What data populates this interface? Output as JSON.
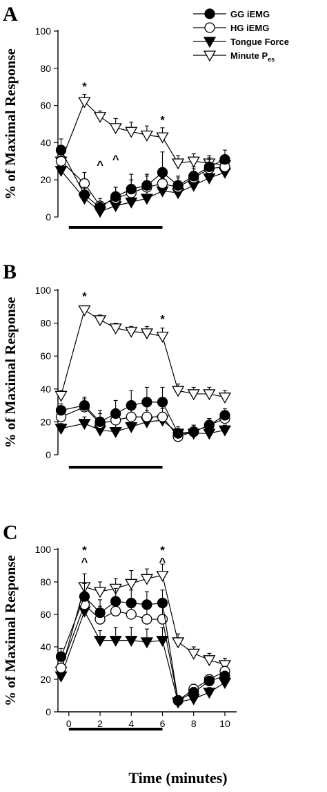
{
  "chart_data": {
    "type": "line",
    "xlabel": "Time (minutes)",
    "ylabel": "% of Maximal Response",
    "ylim": [
      0,
      100
    ],
    "yticks": [
      0,
      20,
      40,
      60,
      80,
      100
    ],
    "xticks": [
      0,
      2,
      4,
      6,
      8,
      10
    ],
    "legend": {
      "position": "top-right",
      "entries": [
        {
          "key": "gg",
          "label": "GG iEMG",
          "marker": "filled-circle"
        },
        {
          "key": "hg",
          "label": "HG iEMG",
          "marker": "open-circle"
        },
        {
          "key": "tf",
          "label": "Tongue Force",
          "marker": "filled-triangle-down"
        },
        {
          "key": "mp",
          "label": "Minute P",
          "sub": "es",
          "marker": "open-triangle-down"
        }
      ]
    },
    "panels": [
      {
        "label": "A",
        "x": [
          -0.5,
          1,
          2,
          3,
          4,
          5,
          6,
          7,
          8,
          9,
          10
        ],
        "bar": [
          0,
          6
        ],
        "series": [
          {
            "key": "gg",
            "values": [
              36,
              12,
              5,
              11,
              15,
              17,
              24,
              17,
              22,
              27,
              31
            ],
            "err": [
              6,
              4,
              3,
              5,
              8,
              6,
              11,
              5,
              5,
              5,
              5
            ]
          },
          {
            "key": "hg",
            "values": [
              30,
              18,
              6,
              10,
              13,
              16,
              18,
              16,
              21,
              26,
              27
            ],
            "err": [
              5,
              6,
              4,
              6,
              7,
              6,
              8,
              5,
              5,
              5,
              5
            ]
          },
          {
            "key": "tf",
            "values": [
              25,
              10,
              3,
              6,
              8,
              10,
              14,
              13,
              17,
              21,
              24
            ],
            "err": [
              5,
              4,
              3,
              4,
              6,
              6,
              7,
              4,
              4,
              4,
              4
            ]
          },
          {
            "key": "mp",
            "values": [
              30,
              62,
              54,
              48,
              46,
              44,
              43,
              29,
              30,
              29,
              28
            ],
            "err": [
              4,
              4,
              3,
              5,
              5,
              5,
              5,
              4,
              4,
              4,
              4
            ]
          }
        ],
        "annotations": [
          {
            "x": 1,
            "y": 68,
            "text": "*"
          },
          {
            "x": 6,
            "y": 50,
            "text": "*"
          },
          {
            "x": 2,
            "y": 26,
            "text": "^"
          },
          {
            "x": 3,
            "y": 29,
            "text": "^"
          }
        ]
      },
      {
        "label": "B",
        "x": [
          -0.5,
          1,
          2,
          3,
          4,
          5,
          6,
          7,
          8,
          9,
          10
        ],
        "bar": [
          0,
          6
        ],
        "series": [
          {
            "key": "gg",
            "values": [
              27,
              30,
              20,
              25,
              30,
              32,
              32,
              13,
              14,
              18,
              24
            ],
            "err": [
              4,
              5,
              7,
              8,
              9,
              9,
              9,
              4,
              4,
              4,
              4
            ]
          },
          {
            "key": "hg",
            "values": [
              23,
              29,
              19,
              21,
              23,
              23,
              23,
              11,
              14,
              18,
              22
            ],
            "err": [
              4,
              5,
              6,
              7,
              8,
              8,
              8,
              4,
              4,
              4,
              4
            ]
          },
          {
            "key": "tf",
            "values": [
              16,
              19,
              15,
              14,
              17,
              20,
              21,
              13,
              13,
              13,
              15
            ],
            "err": [
              3,
              4,
              6,
              6,
              6,
              7,
              7,
              3,
              3,
              3,
              3
            ]
          },
          {
            "key": "mp",
            "values": [
              36,
              88,
              82,
              77,
              75,
              74,
              72,
              39,
              37,
              37,
              35
            ],
            "err": [
              3,
              2,
              3,
              3,
              3,
              4,
              5,
              4,
              4,
              4,
              4
            ]
          }
        ],
        "annotations": [
          {
            "x": 1,
            "y": 94,
            "text": "*"
          },
          {
            "x": 6,
            "y": 80,
            "text": "*"
          }
        ]
      },
      {
        "label": "C",
        "x": [
          -0.5,
          1,
          2,
          3,
          4,
          5,
          6,
          7,
          8,
          9,
          10
        ],
        "bar": [
          0,
          6
        ],
        "series": [
          {
            "key": "gg",
            "values": [
              34,
              71,
              61,
              68,
              67,
              66,
              67,
              7,
              12,
              19,
              22
            ],
            "err": [
              5,
              8,
              8,
              8,
              8,
              8,
              8,
              3,
              3,
              3,
              3
            ]
          },
          {
            "key": "hg",
            "values": [
              27,
              66,
              57,
              62,
              60,
              57,
              57,
              7,
              14,
              20,
              25
            ],
            "err": [
              5,
              8,
              8,
              8,
              8,
              8,
              8,
              3,
              3,
              3,
              3
            ]
          },
          {
            "key": "tf",
            "values": [
              22,
              62,
              44,
              44,
              44,
              43,
              44,
              6,
              8,
              12,
              18
            ],
            "err": [
              4,
              8,
              6,
              8,
              8,
              8,
              8,
              3,
              3,
              3,
              3
            ]
          },
          {
            "key": "mp",
            "values": [
              25,
              77,
              74,
              76,
              79,
              82,
              84,
              43,
              36,
              32,
              29
            ],
            "err": [
              4,
              8,
              6,
              6,
              8,
              6,
              7,
              5,
              4,
              4,
              4
            ]
          }
        ],
        "annotations": [
          {
            "x": 1,
            "y": 97,
            "text": "*"
          },
          {
            "x": 1,
            "y": 90,
            "text": "^"
          },
          {
            "x": 6,
            "y": 97,
            "text": "*"
          },
          {
            "x": 6,
            "y": 90,
            "text": "^"
          }
        ]
      }
    ]
  }
}
